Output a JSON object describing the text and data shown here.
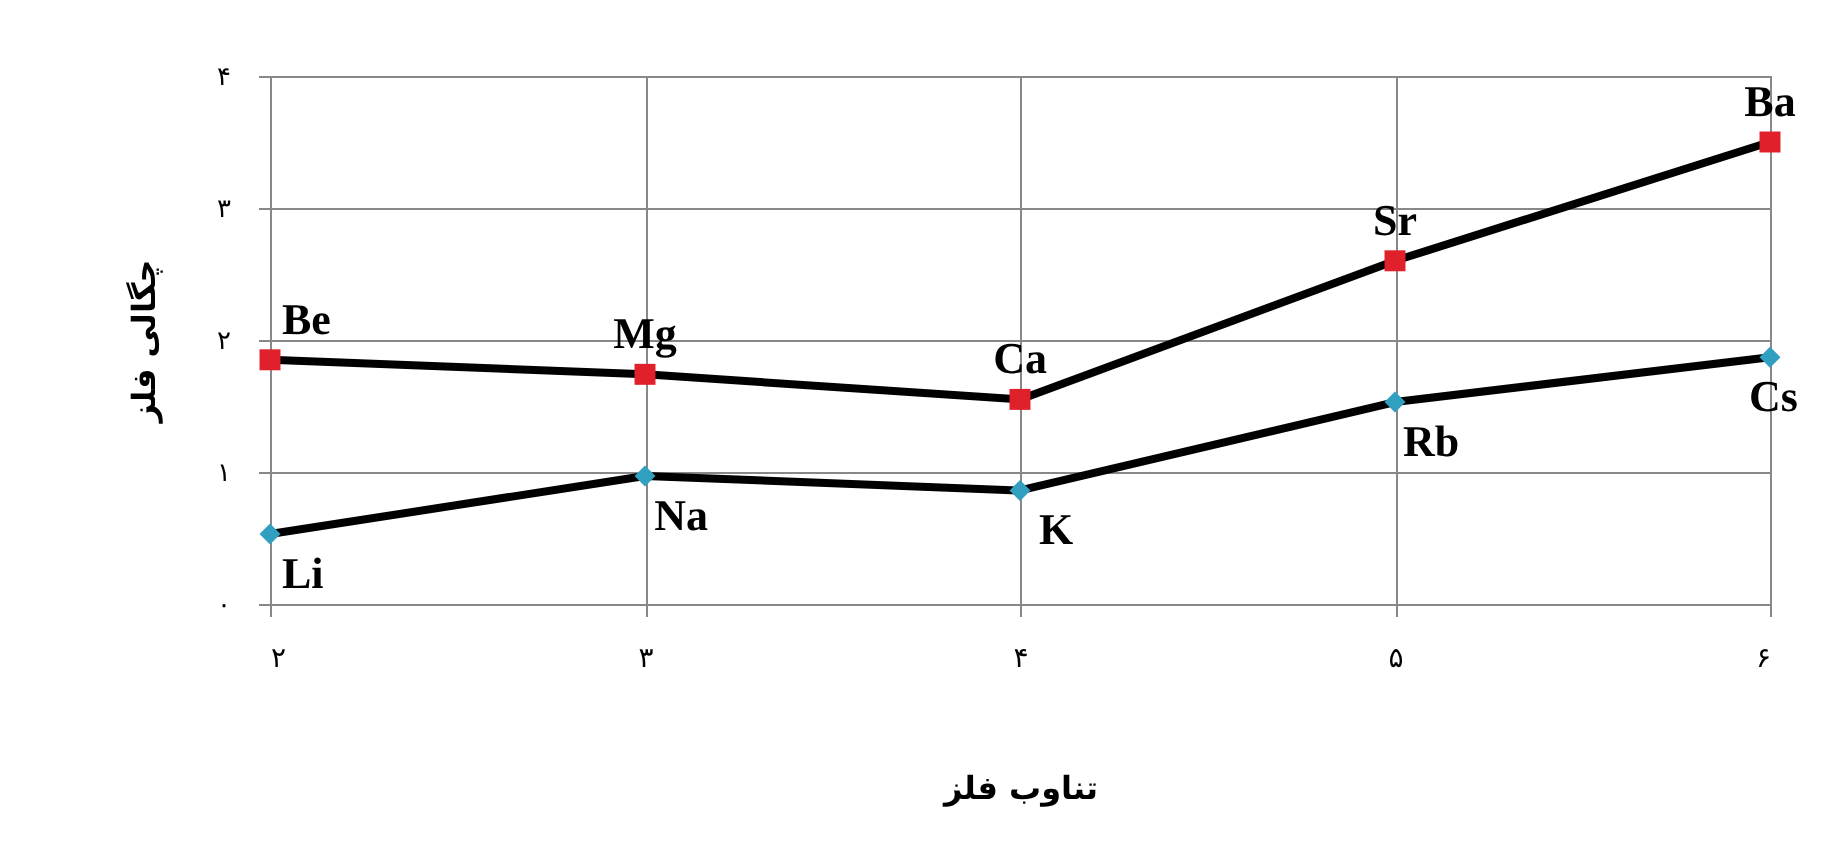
{
  "chart_data": {
    "type": "line",
    "xlabel": "تناوب فلز",
    "ylabel": "چگالی فلز",
    "x": [
      2,
      3,
      4,
      5,
      6
    ],
    "series": [
      {
        "color": "#e0202a",
        "marker": "square",
        "values": [
          1.85,
          1.74,
          1.55,
          2.6,
          3.5
        ]
      },
      {
        "color": "#31a0c0",
        "marker": "diamond",
        "values": [
          0.53,
          0.97,
          0.86,
          1.53,
          1.87
        ]
      }
    ],
    "xlim": [
      2,
      6
    ],
    "ylim": [
      0,
      4
    ],
    "xticks": [
      {
        "value": 2,
        "label": "۲"
      },
      {
        "value": 3,
        "label": "۳"
      },
      {
        "value": 4,
        "label": "۴"
      },
      {
        "value": 5,
        "label": "۵"
      },
      {
        "value": 6,
        "label": "۶"
      }
    ],
    "yticks": [
      {
        "value": 0,
        "label": "۰"
      },
      {
        "value": 1,
        "label": "۱"
      },
      {
        "value": 2,
        "label": "۲"
      },
      {
        "value": 3,
        "label": "۳"
      },
      {
        "value": 4,
        "label": "۴"
      }
    ],
    "grid": true,
    "line_style": "solid",
    "annotations": [
      {
        "text": "Be",
        "x": 2,
        "y": 1.85
      },
      {
        "text": "Mg",
        "x": 3,
        "y": 1.74
      },
      {
        "text": "Ca",
        "x": 4,
        "y": 1.55
      },
      {
        "text": "Sr",
        "x": 5,
        "y": 2.6
      },
      {
        "text": "Ba",
        "x": 6,
        "y": 3.5
      },
      {
        "text": "Li",
        "x": 2,
        "y": 0.53
      },
      {
        "text": "Na",
        "x": 3,
        "y": 0.97
      },
      {
        "text": "K",
        "x": 4,
        "y": 0.86
      },
      {
        "text": "Rb",
        "x": 5,
        "y": 1.53
      },
      {
        "text": "Cs",
        "x": 6,
        "y": 1.87
      }
    ]
  }
}
